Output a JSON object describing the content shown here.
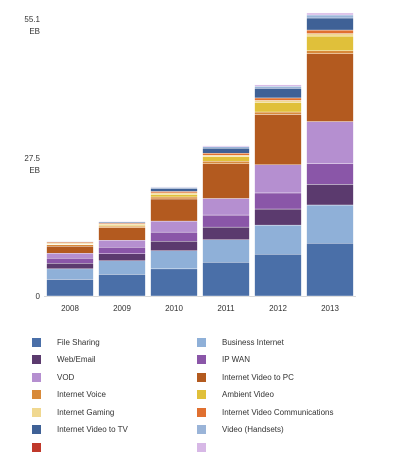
{
  "chart_data": {
    "type": "bar",
    "stacked": true,
    "title": "",
    "xlabel": "",
    "ylabel": "",
    "ylim": [
      0,
      55.1
    ],
    "y_tick_labels": [
      {
        "value": 55.1,
        "label": "55.1",
        "unit": "EB"
      },
      {
        "value": 27.5,
        "label": "27.5",
        "unit": "EB"
      },
      {
        "value": 0,
        "label": "0",
        "unit": ""
      }
    ],
    "categories": [
      "2008",
      "2009",
      "2010",
      "2011",
      "2012",
      "2013"
    ],
    "legend_position": "bottom",
    "grid": false,
    "series": [
      {
        "name": "File Sharing",
        "color": "#4a6fa8",
        "values": [
          3.3,
          4.3,
          5.4,
          6.7,
          8.3,
          10.5
        ]
      },
      {
        "name": "Business Internet",
        "color": "#8fb0d8",
        "values": [
          2.1,
          2.7,
          3.6,
          4.5,
          5.8,
          7.6
        ]
      },
      {
        "name": "Web/Email",
        "color": "#5b3a6e",
        "values": [
          1.1,
          1.4,
          1.9,
          2.5,
          3.2,
          4.1
        ]
      },
      {
        "name": "IP WAN",
        "color": "#8a56a8",
        "values": [
          1.0,
          1.3,
          1.8,
          2.4,
          3.2,
          4.1
        ]
      },
      {
        "name": "VOD",
        "color": "#b58fd0",
        "values": [
          1.0,
          1.4,
          2.2,
          3.3,
          5.6,
          8.4
        ]
      },
      {
        "name": "Internet Video to PC",
        "color": "#b35a1f",
        "values": [
          1.4,
          2.5,
          4.4,
          6.9,
          10.0,
          13.5
        ]
      },
      {
        "name": "Internet Voice",
        "color": "#d88a3a",
        "values": [
          0.3,
          0.3,
          0.4,
          0.5,
          0.5,
          0.6
        ]
      },
      {
        "name": "Ambient Video",
        "color": "#e0c03a",
        "values": [
          0.1,
          0.2,
          0.5,
          0.9,
          1.9,
          2.9
        ]
      },
      {
        "name": "Internet Gaming",
        "color": "#f0d890",
        "values": [
          0.2,
          0.2,
          0.3,
          0.3,
          0.4,
          0.5
        ]
      },
      {
        "name": "Internet Video Communications",
        "color": "#e07030",
        "values": [
          0.2,
          0.2,
          0.3,
          0.4,
          0.5,
          0.7
        ]
      },
      {
        "name": "Internet Video to TV",
        "color": "#3f6196",
        "values": [
          0.1,
          0.2,
          0.6,
          1.0,
          1.9,
          2.4
        ]
      },
      {
        "name": "Video (Handsets)",
        "color": "#9ab4d8",
        "values": [
          0.1,
          0.1,
          0.2,
          0.3,
          0.4,
          0.6
        ]
      },
      {
        "name": "",
        "color": "#c0392b",
        "values": [
          0.0,
          0.0,
          0.0,
          0.0,
          0.0,
          0.0
        ]
      },
      {
        "name": "",
        "color": "#d7b8e6",
        "values": [
          0.0,
          0.1,
          0.1,
          0.2,
          0.3,
          0.4
        ]
      }
    ]
  }
}
